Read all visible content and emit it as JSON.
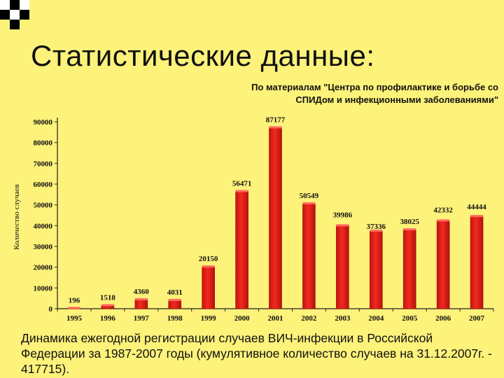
{
  "title": "Статистические данные:",
  "source_note_line1": "По материалам \"Центра по профилактике и борьбе со",
  "source_note_line2": "СПИДом и инфекционными заболеваниями\"",
  "footnote": "Динамика ежегодной регистрации случаев ВИЧ-инфекции в Российской Федерации за 1987-2007 годы (кумулятивное количество случаев на 31.12.2007г. - 417715).",
  "colors": {
    "background": "#fdf27a",
    "bar": "#e3231c",
    "bar_dark": "#9c0f0a"
  },
  "chart_data": {
    "type": "bar",
    "categories": [
      "1995",
      "1996",
      "1997",
      "1998",
      "1999",
      "2000",
      "2001",
      "2002",
      "2003",
      "2004",
      "2005",
      "2006",
      "2007"
    ],
    "values": [
      196,
      1518,
      4360,
      4031,
      20150,
      56471,
      87177,
      50549,
      39986,
      37336,
      38025,
      42332,
      44444
    ],
    "data_labels": [
      "196",
      "1518",
      "4360",
      "4031",
      "20150",
      "56471",
      "87177",
      "50549",
      "39986",
      "37336",
      "38025",
      "42332",
      "44444"
    ],
    "ylabel": "Количество случаев",
    "xlabel": "",
    "ylim": [
      0,
      90000
    ],
    "yticks": [
      0,
      10000,
      20000,
      30000,
      40000,
      50000,
      60000,
      70000,
      80000,
      90000
    ],
    "ytick_labels": [
      "0",
      "10000",
      "20000",
      "30000",
      "40000",
      "50000",
      "60000",
      "70000",
      "80000",
      "90000"
    ],
    "grid": false,
    "legend": "none"
  }
}
